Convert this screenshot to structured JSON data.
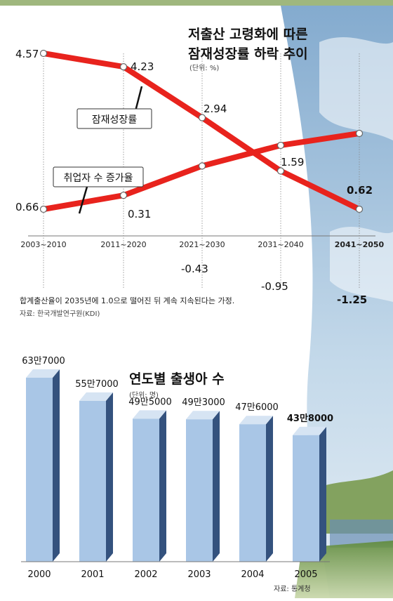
{
  "chart_data": [
    {
      "type": "line",
      "title": "저출산 고령화에 따른 잠재성장률 하락 추이",
      "title_lines": [
        "저출산 고령화에 따른",
        "잠재성장률 하락 추이"
      ],
      "unit": "(단위: %)",
      "categories": [
        "2003~2010",
        "2011~2020",
        "2021~2030",
        "2031~2040",
        "2041~2050"
      ],
      "series": [
        {
          "name": "잠재성장률",
          "values": [
            4.57,
            4.23,
            2.94,
            1.59,
            0.62
          ],
          "labels": [
            "4.57",
            "4.23",
            "2.94",
            "1.59",
            "0.62"
          ]
        },
        {
          "name": "취업자 수 증가율",
          "values": [
            0.66,
            0.31,
            -0.43,
            -0.95,
            -1.25
          ],
          "labels": [
            "0.66",
            "0.31",
            "-0.43",
            "-0.95",
            "-1.25"
          ]
        }
      ],
      "note": "합계출산율이 2035년에 1.0으로 떨어진 뒤 계속 지속된다는 가정.",
      "source": "자료: 한국개발연구원(KDI)",
      "line_color": "#e8231d"
    },
    {
      "type": "bar",
      "title": "연도별 출생아 수",
      "unit": "(단위: 명)",
      "categories": [
        "2000",
        "2001",
        "2002",
        "2003",
        "2004",
        "2005"
      ],
      "values": [
        637000,
        557000,
        495000,
        493000,
        476000,
        438000
      ],
      "value_labels": [
        "63만7000",
        "55만7000",
        "49만5000",
        "49만3000",
        "47만6000",
        "43만8000"
      ],
      "source": "자료: 통계청",
      "bar_color": "#a9c6e6"
    }
  ]
}
